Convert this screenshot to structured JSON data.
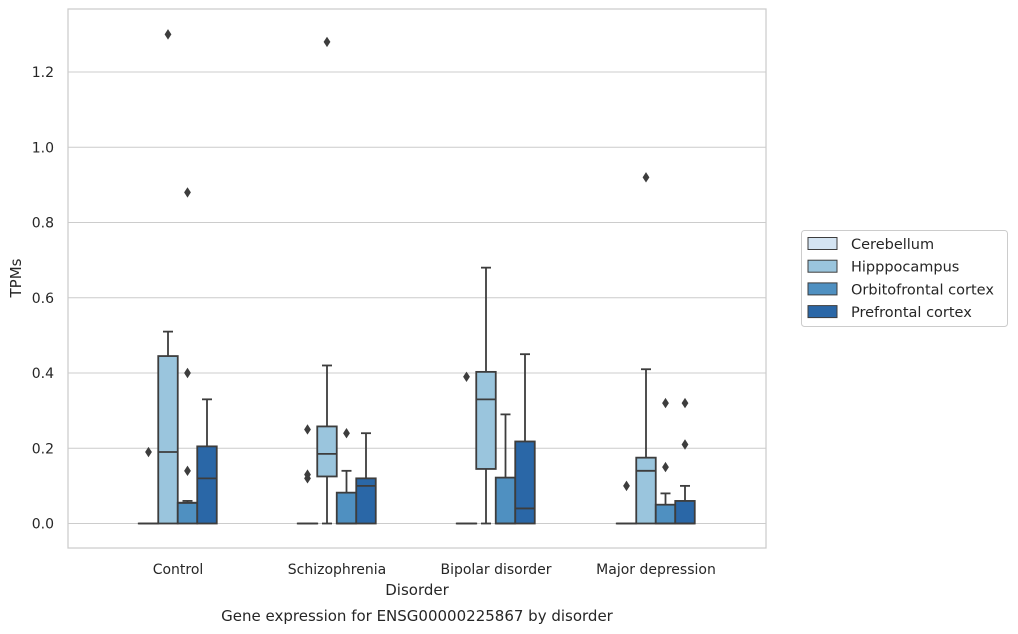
{
  "chart_data": {
    "type": "box",
    "title": "Gene expression for ENSG00000225867 by disorder",
    "xlabel": "Disorder",
    "ylabel": "TPMs",
    "ylim": [
      -0.065,
      1.375
    ],
    "yticks": [
      0.0,
      0.2,
      0.4,
      0.6,
      0.8,
      1.0,
      1.2
    ],
    "ytick_labels": [
      "0.0",
      "0.2",
      "0.4",
      "0.6",
      "0.8",
      "1.0",
      "1.2"
    ],
    "grid": "horizontal",
    "legend_position": "right",
    "categories": [
      "Control",
      "Schizophrenia",
      "Bipolar disorder",
      "Major depression"
    ],
    "series": [
      {
        "name": "Cerebellum",
        "color": "#d4e4f2",
        "boxes": [
          {
            "whislo": 0.0,
            "q1": 0.0,
            "med": 0.0,
            "q3": 0.0,
            "whishi": 0.0,
            "fliers": [
              0.19
            ]
          },
          {
            "whislo": 0.0,
            "q1": 0.0,
            "med": 0.0,
            "q3": 0.0,
            "whishi": 0.0,
            "fliers": [
              0.25,
              0.13,
              0.12
            ]
          },
          {
            "whislo": 0.0,
            "q1": 0.0,
            "med": 0.0,
            "q3": 0.0,
            "whishi": 0.0,
            "fliers": [
              0.39
            ]
          },
          {
            "whislo": 0.0,
            "q1": 0.0,
            "med": 0.0,
            "q3": 0.0,
            "whishi": 0.0,
            "fliers": [
              0.1
            ]
          }
        ]
      },
      {
        "name": "Hipppocampus",
        "color": "#9ac5dd",
        "boxes": [
          {
            "whislo": 0.0,
            "q1": 0.0,
            "med": 0.19,
            "q3": 0.445,
            "whishi": 0.51,
            "fliers": [
              1.3
            ]
          },
          {
            "whislo": 0.0,
            "q1": 0.125,
            "med": 0.185,
            "q3": 0.258,
            "whishi": 0.42,
            "fliers": [
              1.28
            ]
          },
          {
            "whislo": 0.0,
            "q1": 0.145,
            "med": 0.33,
            "q3": 0.403,
            "whishi": 0.68,
            "fliers": []
          },
          {
            "whislo": 0.0,
            "q1": 0.0,
            "med": 0.14,
            "q3": 0.175,
            "whishi": 0.41,
            "fliers": [
              0.92
            ]
          }
        ]
      },
      {
        "name": "Orbitofrontal cortex",
        "color": "#4f90c1",
        "boxes": [
          {
            "whislo": 0.0,
            "q1": 0.0,
            "med": 0.055,
            "q3": 0.055,
            "whishi": 0.06,
            "fliers": [
              0.88,
              0.4,
              0.14
            ]
          },
          {
            "whislo": 0.0,
            "q1": 0.0,
            "med": 0.0,
            "q3": 0.082,
            "whishi": 0.14,
            "fliers": [
              0.24
            ]
          },
          {
            "whislo": 0.0,
            "q1": 0.0,
            "med": 0.0,
            "q3": 0.122,
            "whishi": 0.29,
            "fliers": []
          },
          {
            "whislo": 0.0,
            "q1": 0.0,
            "med": 0.0,
            "q3": 0.05,
            "whishi": 0.08,
            "fliers": [
              0.32,
              0.15
            ]
          }
        ]
      },
      {
        "name": "Prefrontal cortex",
        "color": "#2a67a7",
        "boxes": [
          {
            "whislo": 0.0,
            "q1": 0.0,
            "med": 0.12,
            "q3": 0.205,
            "whishi": 0.33,
            "fliers": []
          },
          {
            "whislo": 0.0,
            "q1": 0.0,
            "med": 0.1,
            "q3": 0.12,
            "whishi": 0.24,
            "fliers": []
          },
          {
            "whislo": 0.0,
            "q1": 0.0,
            "med": 0.04,
            "q3": 0.218,
            "whishi": 0.45,
            "fliers": []
          },
          {
            "whislo": 0.0,
            "q1": 0.0,
            "med": 0.0,
            "q3": 0.06,
            "whishi": 0.1,
            "fliers": [
              0.32,
              0.21
            ]
          }
        ]
      }
    ]
  },
  "colors": {
    "frame": "#cccccc",
    "grid": "#cccccc",
    "line": "#3d3d3d",
    "text": "#262626"
  }
}
